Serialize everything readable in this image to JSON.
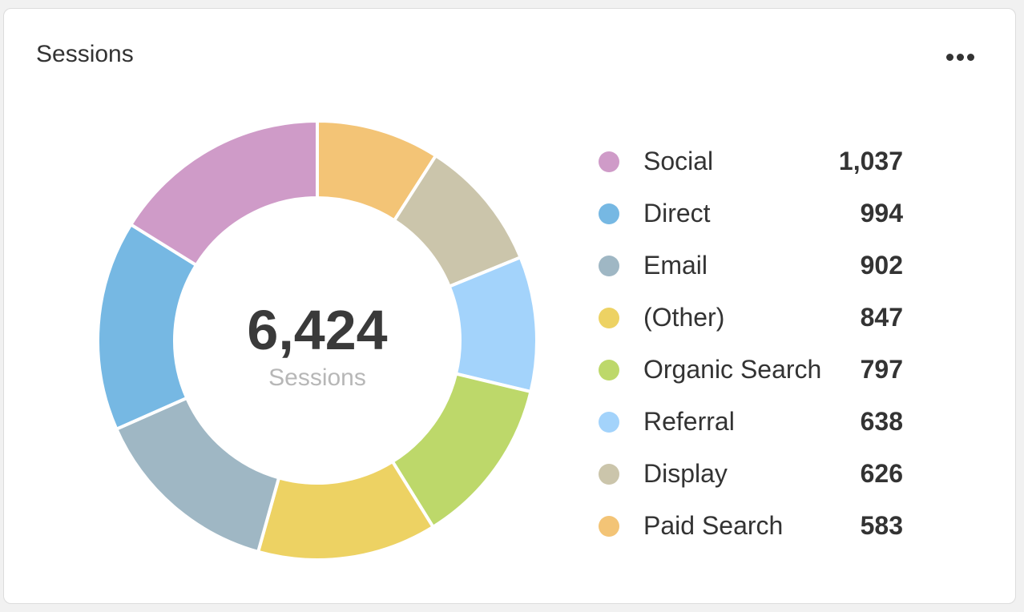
{
  "card": {
    "title": "Sessions",
    "more_icon": "more-horizontal-icon"
  },
  "chart_data": {
    "type": "pie",
    "variant": "donut",
    "center_value": "6,424",
    "center_label": "Sessions",
    "total": 6424,
    "legend_placement": "right",
    "slices": [
      {
        "label": "Social",
        "value": 1037,
        "display": "1,037",
        "color": "#cf9bc8"
      },
      {
        "label": "Direct",
        "value": 994,
        "display": "994",
        "color": "#76b8e3"
      },
      {
        "label": "Email",
        "value": 902,
        "display": "902",
        "color": "#9fb7c4"
      },
      {
        "label": "(Other)",
        "value": 847,
        "display": "847",
        "color": "#edd263"
      },
      {
        "label": "Organic Search",
        "value": 797,
        "display": "797",
        "color": "#bdd86a"
      },
      {
        "label": "Referral",
        "value": 638,
        "display": "638",
        "color": "#a3d3fb"
      },
      {
        "label": "Display",
        "value": 626,
        "display": "626",
        "color": "#cbc5ab"
      },
      {
        "label": "Paid Search",
        "value": 583,
        "display": "583",
        "color": "#f3c476"
      }
    ]
  }
}
